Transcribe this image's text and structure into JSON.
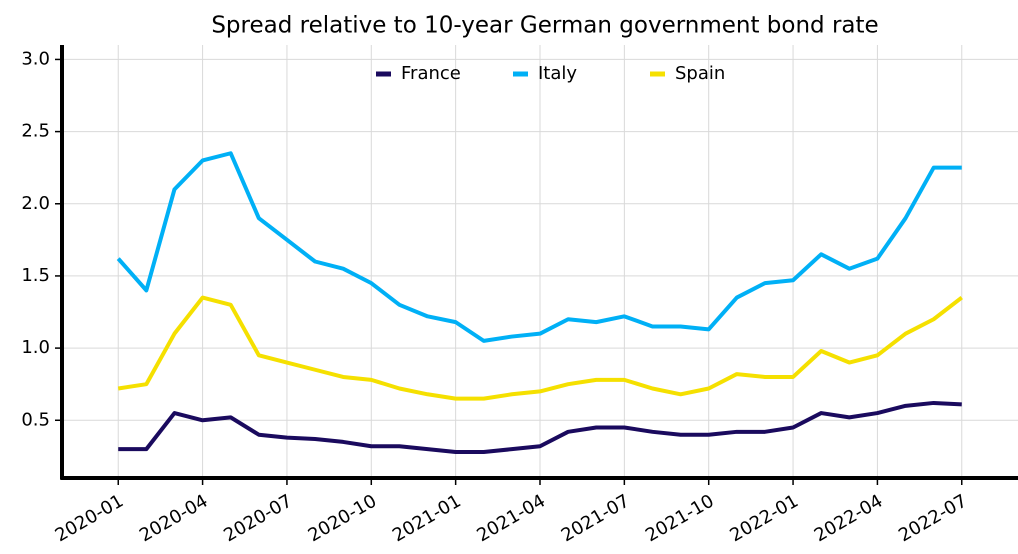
{
  "chart_data": {
    "type": "line",
    "title": "Spread relative to 10-year German government bond rate",
    "x": [
      "2020-01",
      "2020-02",
      "2020-03",
      "2020-04",
      "2020-05",
      "2020-06",
      "2020-07",
      "2020-08",
      "2020-09",
      "2020-10",
      "2020-11",
      "2020-12",
      "2021-01",
      "2021-02",
      "2021-03",
      "2021-04",
      "2021-05",
      "2021-06",
      "2021-07",
      "2021-08",
      "2021-09",
      "2021-10",
      "2021-11",
      "2021-12",
      "2022-01",
      "2022-02",
      "2022-03",
      "2022-04",
      "2022-05",
      "2022-06",
      "2022-07"
    ],
    "series": [
      {
        "name": "France",
        "color": "#1a0a5e",
        "values": [
          0.3,
          0.3,
          0.55,
          0.5,
          0.52,
          0.4,
          0.38,
          0.37,
          0.35,
          0.32,
          0.32,
          0.3,
          0.28,
          0.28,
          0.3,
          0.32,
          0.42,
          0.45,
          0.45,
          0.42,
          0.4,
          0.4,
          0.42,
          0.42,
          0.45,
          0.55,
          0.52,
          0.55,
          0.6,
          0.62,
          0.61
        ]
      },
      {
        "name": "Italy",
        "color": "#00b0f6",
        "values": [
          1.62,
          1.4,
          2.1,
          2.3,
          2.35,
          1.9,
          1.75,
          1.6,
          1.55,
          1.45,
          1.3,
          1.22,
          1.18,
          1.05,
          1.08,
          1.1,
          1.2,
          1.18,
          1.22,
          1.15,
          1.15,
          1.13,
          1.35,
          1.45,
          1.47,
          1.65,
          1.55,
          1.62,
          1.9,
          2.25,
          2.25
        ]
      },
      {
        "name": "Spain",
        "color": "#f5e000",
        "values": [
          0.72,
          0.75,
          1.1,
          1.35,
          1.3,
          0.95,
          0.9,
          0.85,
          0.8,
          0.78,
          0.72,
          0.68,
          0.65,
          0.65,
          0.68,
          0.7,
          0.75,
          0.78,
          0.78,
          0.72,
          0.68,
          0.72,
          0.82,
          0.8,
          0.8,
          0.98,
          0.9,
          0.95,
          1.1,
          1.2,
          1.35
        ]
      }
    ],
    "xlim": [
      "2019-11",
      "2022-09"
    ],
    "xticks": [
      "2020-01",
      "2020-04",
      "2020-07",
      "2020-10",
      "2021-01",
      "2021-04",
      "2021-07",
      "2021-10",
      "2022-01",
      "2022-04",
      "2022-07"
    ],
    "ylim": [
      0.1,
      3.1
    ],
    "yticks": [
      0.5,
      {
        "value": 1,
        "label": "1.0"
      },
      1.5,
      {
        "value": 2,
        "label": "2.0"
      },
      2.5,
      {
        "value": 3,
        "label": "3.0"
      }
    ],
    "grid": true,
    "legend": "top"
  }
}
